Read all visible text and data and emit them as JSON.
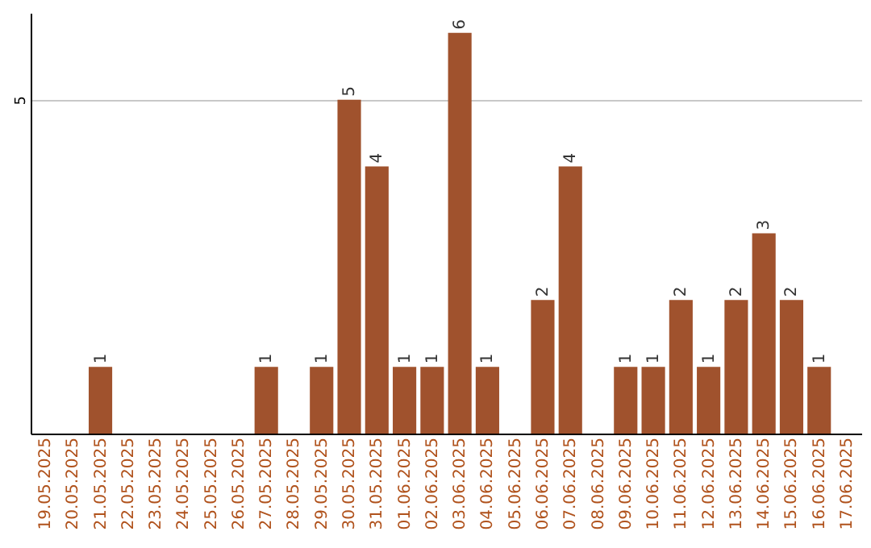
{
  "chart_data": {
    "type": "bar",
    "categories": [
      "19.05.2025",
      "20.05.2025",
      "21.05.2025",
      "22.05.2025",
      "23.05.2025",
      "24.05.2025",
      "25.05.2025",
      "26.05.2025",
      "27.05.2025",
      "28.05.2025",
      "29.05.2025",
      "30.05.2025",
      "31.05.2025",
      "01.06.2025",
      "02.06.2025",
      "03.06.2025",
      "04.06.2025",
      "05.06.2025",
      "06.06.2025",
      "07.06.2025",
      "08.06.2025",
      "09.06.2025",
      "10.06.2025",
      "11.06.2025",
      "12.06.2025",
      "13.06.2025",
      "14.06.2025",
      "15.06.2025",
      "16.06.2025",
      "17.06.2025"
    ],
    "values": [
      null,
      null,
      1,
      null,
      null,
      null,
      null,
      null,
      1,
      null,
      1,
      5,
      4,
      1,
      1,
      6,
      1,
      null,
      2,
      4,
      null,
      1,
      1,
      2,
      1,
      2,
      3,
      2,
      1,
      null
    ],
    "color": "#a0522d",
    "ylim": [
      0,
      6.3
    ],
    "yticks": [
      5
    ],
    "grid": "y",
    "data_labels": true
  }
}
